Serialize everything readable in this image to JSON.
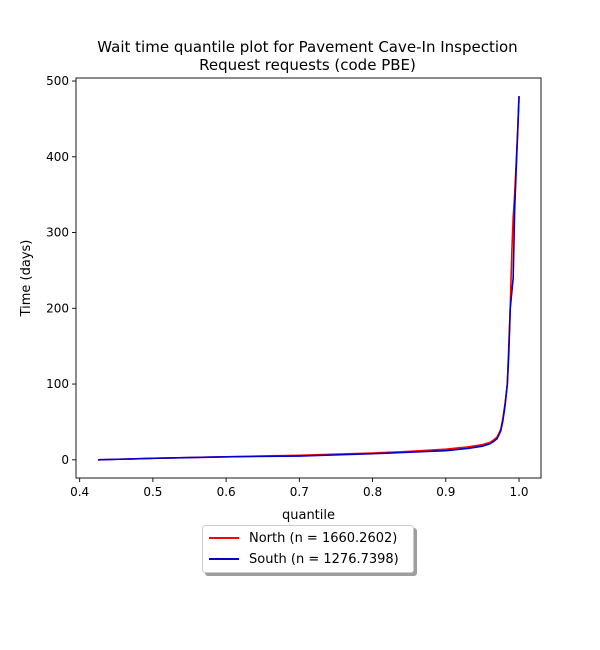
{
  "chart_data": {
    "type": "line",
    "title_lines": [
      "Wait time quantile plot for Pavement Cave-In Inspection",
      "Request  requests (code PBE)"
    ],
    "xlabel": "quantile",
    "ylabel": "Time (days)",
    "xlim": [
      0.395,
      1.03
    ],
    "ylim": [
      -24,
      504
    ],
    "xticks": [
      0.4,
      0.5,
      0.6,
      0.7,
      0.8,
      0.9,
      1.0
    ],
    "xtick_labels": [
      "0.4",
      "0.5",
      "0.6",
      "0.7",
      "0.8",
      "0.9",
      "1.0"
    ],
    "yticks": [
      0,
      100,
      200,
      300,
      400,
      500
    ],
    "ytick_labels": [
      "0",
      "100",
      "200",
      "300",
      "400",
      "500"
    ],
    "grid": false,
    "legend_placement": "below",
    "series": [
      {
        "name": "North (n = 1660.2602)",
        "color": "#ff0000",
        "x": [
          0.425,
          0.5,
          0.6,
          0.7,
          0.8,
          0.85,
          0.9,
          0.93,
          0.95,
          0.96,
          0.965,
          0.97,
          0.975,
          0.978,
          0.981,
          0.984,
          0.986,
          0.988,
          0.99,
          0.992,
          0.994,
          0.996,
          0.998,
          1.0
        ],
        "y": [
          0,
          2,
          4,
          6,
          9,
          11,
          14,
          17,
          20,
          23,
          26,
          30,
          40,
          55,
          75,
          100,
          150,
          200,
          270,
          320,
          350,
          390,
          430,
          480
        ]
      },
      {
        "name": "South (n = 1276.7398)",
        "color": "#0000cc",
        "x": [
          0.425,
          0.5,
          0.6,
          0.7,
          0.8,
          0.85,
          0.9,
          0.93,
          0.95,
          0.96,
          0.965,
          0.97,
          0.975,
          0.978,
          0.981,
          0.984,
          0.986,
          0.988,
          0.99,
          0.992,
          0.994,
          0.996,
          0.998,
          1.0
        ],
        "y": [
          0,
          2,
          4,
          5,
          8,
          10,
          12,
          15,
          18,
          21,
          24,
          28,
          38,
          52,
          72,
          100,
          140,
          200,
          220,
          240,
          330,
          380,
          430,
          480
        ]
      }
    ]
  }
}
